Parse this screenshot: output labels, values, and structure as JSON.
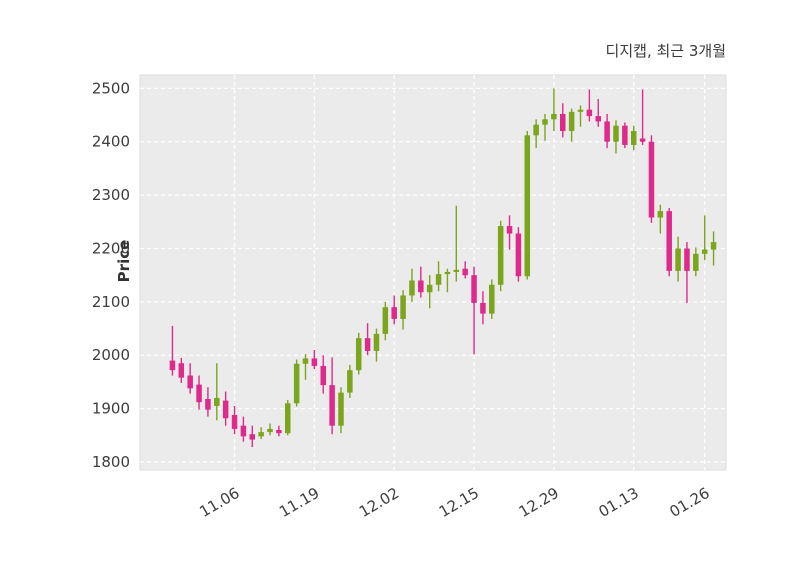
{
  "chart_data": {
    "type": "candlestick",
    "title": "디지캡, 최근 3개월",
    "ylabel": "Price",
    "ylim": [
      1800,
      2500
    ],
    "y_ticks": [
      1800,
      1900,
      2000,
      2100,
      2200,
      2300,
      2400,
      2500
    ],
    "x_tick_labels": [
      "11.06",
      "11.19",
      "12.02",
      "12.15",
      "12.29",
      "01.13",
      "01.26"
    ],
    "x_tick_indices": [
      7,
      16,
      25,
      34,
      43,
      52,
      60
    ],
    "up_color": "#7aa51c",
    "down_color": "#dd2a8c",
    "plot_bg_color": "#ebebeb",
    "grid_color": "#ffffff",
    "tick_label_color": "#3d3d3d",
    "candles": [
      [
        1990,
        2055,
        1962,
        1972
      ],
      [
        1985,
        1995,
        1948,
        1958
      ],
      [
        1962,
        1985,
        1928,
        1938
      ],
      [
        1945,
        1962,
        1898,
        1912
      ],
      [
        1918,
        1940,
        1885,
        1898
      ],
      [
        1905,
        1985,
        1878,
        1920
      ],
      [
        1915,
        1932,
        1868,
        1882
      ],
      [
        1888,
        1905,
        1852,
        1862
      ],
      [
        1868,
        1885,
        1838,
        1848
      ],
      [
        1852,
        1868,
        1828,
        1842
      ],
      [
        1848,
        1865,
        1843,
        1856
      ],
      [
        1856,
        1872,
        1850,
        1862
      ],
      [
        1860,
        1868,
        1848,
        1854
      ],
      [
        1854,
        1916,
        1850,
        1910
      ],
      [
        1910,
        1992,
        1904,
        1984
      ],
      [
        1984,
        2002,
        1954,
        1994
      ],
      [
        1994,
        2010,
        1974,
        1980
      ],
      [
        1980,
        2000,
        1928,
        1944
      ],
      [
        1944,
        1996,
        1852,
        1868
      ],
      [
        1868,
        1940,
        1854,
        1930
      ],
      [
        1930,
        1982,
        1920,
        1972
      ],
      [
        1972,
        2042,
        1964,
        2032
      ],
      [
        2032,
        2060,
        2000,
        2008
      ],
      [
        2008,
        2050,
        1988,
        2040
      ],
      [
        2040,
        2100,
        2028,
        2090
      ],
      [
        2090,
        2112,
        2058,
        2068
      ],
      [
        2068,
        2122,
        2048,
        2112
      ],
      [
        2112,
        2162,
        2100,
        2140
      ],
      [
        2140,
        2166,
        2108,
        2118
      ],
      [
        2118,
        2150,
        2088,
        2132
      ],
      [
        2132,
        2176,
        2120,
        2152
      ],
      [
        2152,
        2162,
        2118,
        2156
      ],
      [
        2156,
        2280,
        2138,
        2160
      ],
      [
        2162,
        2176,
        2144,
        2150
      ],
      [
        2150,
        2166,
        2002,
        2098
      ],
      [
        2098,
        2120,
        2058,
        2078
      ],
      [
        2078,
        2142,
        2068,
        2132
      ],
      [
        2132,
        2252,
        2120,
        2242
      ],
      [
        2242,
        2262,
        2198,
        2228
      ],
      [
        2228,
        2240,
        2138,
        2148
      ],
      [
        2148,
        2420,
        2142,
        2412
      ],
      [
        2412,
        2442,
        2388,
        2432
      ],
      [
        2432,
        2452,
        2402,
        2442
      ],
      [
        2442,
        2500,
        2420,
        2452
      ],
      [
        2452,
        2472,
        2408,
        2420
      ],
      [
        2420,
        2462,
        2400,
        2456
      ],
      [
        2456,
        2468,
        2428,
        2460
      ],
      [
        2460,
        2498,
        2438,
        2448
      ],
      [
        2448,
        2480,
        2428,
        2438
      ],
      [
        2438,
        2452,
        2388,
        2400
      ],
      [
        2400,
        2440,
        2378,
        2430
      ],
      [
        2430,
        2436,
        2388,
        2394
      ],
      [
        2394,
        2430,
        2384,
        2420
      ],
      [
        2406,
        2498,
        2394,
        2400
      ],
      [
        2400,
        2412,
        2248,
        2258
      ],
      [
        2258,
        2282,
        2228,
        2270
      ],
      [
        2270,
        2276,
        2148,
        2158
      ],
      [
        2158,
        2222,
        2138,
        2200
      ],
      [
        2200,
        2212,
        2098,
        2158
      ],
      [
        2158,
        2202,
        2148,
        2190
      ],
      [
        2190,
        2262,
        2178,
        2198
      ],
      [
        2198,
        2232,
        2168,
        2212
      ]
    ]
  }
}
